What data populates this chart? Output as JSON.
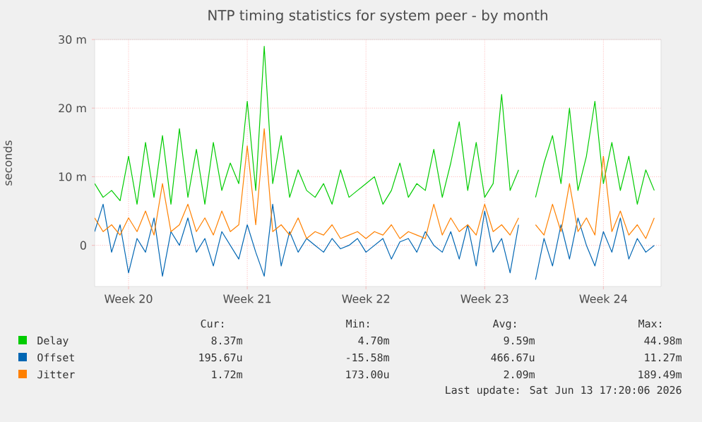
{
  "chart_data": {
    "type": "line",
    "title": "NTP timing statistics for system peer - by month",
    "ylabel": "seconds",
    "categories": [
      null,
      null,
      null,
      null,
      "Week 20",
      null,
      null,
      null,
      null,
      null,
      null,
      null,
      null,
      null,
      null,
      null,
      null,
      null,
      "Week 21",
      null,
      null,
      null,
      null,
      null,
      null,
      null,
      null,
      null,
      null,
      null,
      null,
      null,
      "Week 22",
      null,
      null,
      null,
      null,
      null,
      null,
      null,
      null,
      null,
      null,
      null,
      null,
      null,
      "Week 23",
      null,
      null,
      null,
      null,
      null,
      null,
      null,
      null,
      null,
      null,
      null,
      null,
      null,
      "Week 24",
      null,
      null,
      null,
      null,
      null,
      null
    ],
    "series": [
      {
        "name": "Delay",
        "color": "#00cc00",
        "values": [
          9,
          7,
          8,
          6.5,
          13,
          6,
          15,
          7,
          16,
          6,
          17,
          7,
          14,
          6,
          15,
          8,
          12,
          9,
          21,
          8,
          29,
          9,
          16,
          7,
          11,
          8,
          7,
          9,
          6,
          11,
          7,
          8,
          9,
          10,
          6,
          8,
          12,
          7,
          9,
          8,
          14,
          7,
          12,
          18,
          8,
          15,
          7,
          9,
          22,
          8,
          11,
          null,
          7,
          12,
          16,
          9,
          20,
          8,
          13,
          21,
          9,
          15,
          8,
          13,
          6,
          11,
          8
        ]
      },
      {
        "name": "Offset",
        "color": "#0066b3",
        "values": [
          2,
          6,
          -1,
          3,
          -4,
          1,
          -1,
          4,
          -4.5,
          2,
          0,
          4,
          -1,
          1,
          -3,
          2,
          0,
          -2,
          3,
          -1,
          -4.5,
          6,
          -3,
          2,
          -1,
          1,
          0,
          -1,
          1,
          -0.5,
          0,
          1,
          -1,
          0,
          1,
          -2,
          0.5,
          1,
          -1,
          2,
          0,
          -1,
          2,
          -2,
          3,
          -3,
          5,
          -1,
          1,
          -4,
          3,
          null,
          -5,
          1,
          -3,
          3,
          -2,
          4,
          0,
          -3,
          2,
          -1,
          4,
          -2,
          1,
          -1,
          0
        ]
      },
      {
        "name": "Jitter",
        "color": "#ff8000",
        "values": [
          4,
          2,
          3,
          1.5,
          4,
          2,
          5,
          1.5,
          9,
          2,
          3,
          6,
          2,
          4,
          1.5,
          5,
          2,
          3,
          14.5,
          3,
          17,
          2,
          3,
          1.5,
          4,
          1,
          2,
          1.5,
          3,
          1,
          1.5,
          2,
          1,
          2,
          1.5,
          3,
          1,
          2,
          1.5,
          1,
          6,
          1.5,
          4,
          2,
          3,
          1.5,
          6,
          2,
          3,
          1.5,
          4,
          null,
          3,
          1.5,
          6,
          2,
          9,
          2,
          4,
          1.5,
          13,
          2,
          5,
          1.5,
          3,
          1,
          4
        ]
      }
    ],
    "ylim": [
      -6,
      30
    ],
    "yticks": [
      0,
      {
        "value": 10,
        "label": "10 m"
      },
      {
        "value": 20,
        "label": "20 m"
      },
      {
        "value": 30,
        "label": "30 m"
      }
    ],
    "grid": true,
    "legend": "bottom",
    "annotations": [
      "Cur:",
      "Min:",
      "Avg:",
      "Max:",
      "8.37m",
      "4.70m",
      "9.59m",
      "44.98m",
      "195.67u",
      "-15.58m",
      "466.67u",
      "11.27m",
      "1.72m",
      "173.00u",
      "2.09m",
      "189.49m",
      "Last update: Sat Jun 13 17:20:06 2026"
    ]
  }
}
